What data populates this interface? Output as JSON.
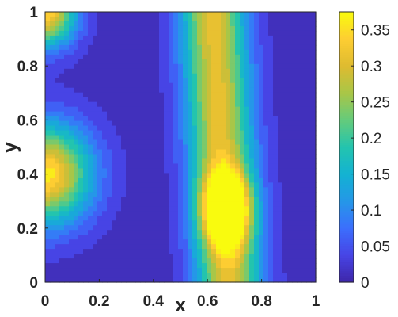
{
  "chart_data": {
    "type": "heatmap",
    "subtype": "filled-contour",
    "colormap": "parula",
    "xlabel": "x",
    "ylabel": "y",
    "xlim": [
      0,
      1
    ],
    "ylim": [
      0,
      1
    ],
    "x_ticks": [
      "0",
      "0.2",
      "0.4",
      "0.6",
      "0.8",
      "1"
    ],
    "y_ticks": [
      "0",
      "0.2",
      "0.4",
      "0.6",
      "0.8",
      "1"
    ],
    "grid": false,
    "colorbar": {
      "position": "right",
      "range": [
        0,
        0.375
      ],
      "ticks": [
        "0",
        "0.05",
        "0.1",
        "0.15",
        "0.2",
        "0.25",
        "0.3",
        "0.35"
      ]
    },
    "background_value": 0.01,
    "features": [
      {
        "kind": "blob",
        "x": 0.0,
        "y": 0.4,
        "peak": 0.36,
        "sx": 0.12,
        "sy": 0.13
      },
      {
        "kind": "blob",
        "x": 0.0,
        "y": 1.0,
        "peak": 0.35,
        "sx": 0.08,
        "sy": 0.09
      },
      {
        "kind": "column",
        "x_center_bottom": 0.68,
        "x_center_top": 0.62,
        "y_from": 0.0,
        "y_to": 1.0,
        "peak": 0.31,
        "sx": 0.085
      },
      {
        "kind": "blob",
        "x": 0.67,
        "y": 0.27,
        "peak": 0.35,
        "sx": 0.06,
        "sy": 0.09
      }
    ]
  }
}
